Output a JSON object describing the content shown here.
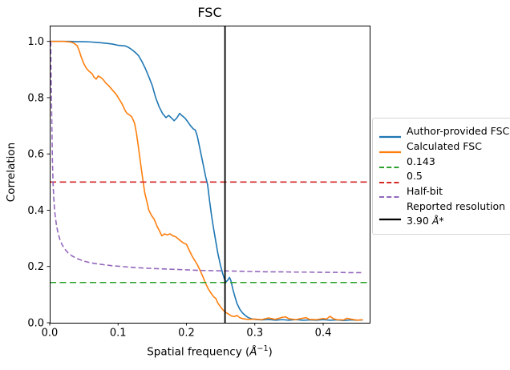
{
  "chart_data": {
    "type": "line",
    "title": "FSC",
    "ylabel": "Correlation",
    "xlabel": {
      "prefix": "Spatial frequency (",
      "unit": "Å",
      "exponent": "−1",
      "suffix": ")"
    },
    "xlim": [
      0,
      0.468
    ],
    "ylim": [
      0,
      1.056
    ],
    "xticks": [
      0,
      0.1,
      0.2,
      0.3,
      0.4
    ],
    "xtick_labels": [
      "0.0",
      "0.1",
      "0.2",
      "0.3",
      "0.4"
    ],
    "yticks": [
      0,
      0.2,
      0.4,
      0.6,
      0.8,
      1.0
    ],
    "ytick_labels": [
      "0.0",
      "0.2",
      "0.4",
      "0.6",
      "0.8",
      "1.0"
    ],
    "grid": false,
    "legend_position": "outside-right",
    "series": [
      {
        "name": "Author-provided FSC",
        "color": "#1f77b4",
        "style": "solid",
        "kind": "curve",
        "points": [
          [
            0,
            1.0
          ],
          [
            0.01,
            1.0
          ],
          [
            0.02,
            1.0
          ],
          [
            0.03,
            1.0
          ],
          [
            0.04,
            0.999
          ],
          [
            0.05,
            0.999
          ],
          [
            0.06,
            0.998
          ],
          [
            0.07,
            0.996
          ],
          [
            0.08,
            0.994
          ],
          [
            0.09,
            0.991
          ],
          [
            0.095,
            0.989
          ],
          [
            0.1,
            0.986
          ],
          [
            0.105,
            0.985
          ],
          [
            0.11,
            0.984
          ],
          [
            0.115,
            0.979
          ],
          [
            0.12,
            0.971
          ],
          [
            0.125,
            0.961
          ],
          [
            0.13,
            0.949
          ],
          [
            0.135,
            0.928
          ],
          [
            0.14,
            0.903
          ],
          [
            0.145,
            0.874
          ],
          [
            0.15,
            0.843
          ],
          [
            0.155,
            0.8
          ],
          [
            0.16,
            0.768
          ],
          [
            0.165,
            0.744
          ],
          [
            0.17,
            0.729
          ],
          [
            0.174,
            0.737
          ],
          [
            0.178,
            0.728
          ],
          [
            0.182,
            0.718
          ],
          [
            0.186,
            0.728
          ],
          [
            0.19,
            0.744
          ],
          [
            0.194,
            0.735
          ],
          [
            0.198,
            0.727
          ],
          [
            0.202,
            0.714
          ],
          [
            0.206,
            0.7
          ],
          [
            0.21,
            0.689
          ],
          [
            0.213,
            0.685
          ],
          [
            0.216,
            0.662
          ],
          [
            0.22,
            0.615
          ],
          [
            0.224,
            0.568
          ],
          [
            0.228,
            0.52
          ],
          [
            0.231,
            0.49
          ],
          [
            0.234,
            0.43
          ],
          [
            0.237,
            0.376
          ],
          [
            0.24,
            0.33
          ],
          [
            0.243,
            0.288
          ],
          [
            0.246,
            0.246
          ],
          [
            0.25,
            0.202
          ],
          [
            0.253,
            0.175
          ],
          [
            0.256,
            0.152
          ],
          [
            0.258,
            0.146
          ],
          [
            0.26,
            0.15
          ],
          [
            0.263,
            0.161
          ],
          [
            0.265,
            0.15
          ],
          [
            0.268,
            0.118
          ],
          [
            0.271,
            0.092
          ],
          [
            0.274,
            0.068
          ],
          [
            0.278,
            0.048
          ],
          [
            0.282,
            0.035
          ],
          [
            0.286,
            0.026
          ],
          [
            0.29,
            0.019
          ],
          [
            0.295,
            0.014
          ],
          [
            0.3,
            0.012
          ],
          [
            0.31,
            0.01
          ],
          [
            0.32,
            0.012
          ],
          [
            0.33,
            0.009
          ],
          [
            0.34,
            0.011
          ],
          [
            0.35,
            0.009
          ],
          [
            0.36,
            0.011
          ],
          [
            0.37,
            0.009
          ],
          [
            0.38,
            0.01
          ],
          [
            0.39,
            0.009
          ],
          [
            0.4,
            0.011
          ],
          [
            0.41,
            0.009
          ],
          [
            0.42,
            0.01
          ],
          [
            0.43,
            0.008
          ],
          [
            0.44,
            0.01
          ],
          [
            0.45,
            0.009
          ],
          [
            0.458,
            0.01
          ]
        ]
      },
      {
        "name": "Calculated FSC",
        "color": "#ff7f0e",
        "style": "solid",
        "kind": "curve",
        "points": [
          [
            0,
            1.0
          ],
          [
            0.01,
            1.0
          ],
          [
            0.02,
            1.0
          ],
          [
            0.025,
            0.999
          ],
          [
            0.03,
            0.998
          ],
          [
            0.035,
            0.994
          ],
          [
            0.04,
            0.985
          ],
          [
            0.043,
            0.968
          ],
          [
            0.046,
            0.945
          ],
          [
            0.05,
            0.92
          ],
          [
            0.054,
            0.903
          ],
          [
            0.058,
            0.893
          ],
          [
            0.062,
            0.885
          ],
          [
            0.065,
            0.872
          ],
          [
            0.068,
            0.866
          ],
          [
            0.071,
            0.877
          ],
          [
            0.074,
            0.873
          ],
          [
            0.078,
            0.865
          ],
          [
            0.082,
            0.852
          ],
          [
            0.086,
            0.843
          ],
          [
            0.09,
            0.832
          ],
          [
            0.094,
            0.821
          ],
          [
            0.098,
            0.809
          ],
          [
            0.102,
            0.793
          ],
          [
            0.106,
            0.777
          ],
          [
            0.11,
            0.756
          ],
          [
            0.113,
            0.744
          ],
          [
            0.116,
            0.74
          ],
          [
            0.12,
            0.732
          ],
          [
            0.124,
            0.71
          ],
          [
            0.127,
            0.672
          ],
          [
            0.13,
            0.62
          ],
          [
            0.133,
            0.565
          ],
          [
            0.136,
            0.512
          ],
          [
            0.139,
            0.462
          ],
          [
            0.142,
            0.432
          ],
          [
            0.145,
            0.4
          ],
          [
            0.149,
            0.381
          ],
          [
            0.153,
            0.367
          ],
          [
            0.157,
            0.343
          ],
          [
            0.161,
            0.324
          ],
          [
            0.164,
            0.309
          ],
          [
            0.168,
            0.316
          ],
          [
            0.172,
            0.312
          ],
          [
            0.176,
            0.316
          ],
          [
            0.18,
            0.309
          ],
          [
            0.184,
            0.306
          ],
          [
            0.188,
            0.298
          ],
          [
            0.192,
            0.29
          ],
          [
            0.196,
            0.283
          ],
          [
            0.2,
            0.279
          ],
          [
            0.204,
            0.258
          ],
          [
            0.208,
            0.238
          ],
          [
            0.212,
            0.222
          ],
          [
            0.216,
            0.206
          ],
          [
            0.22,
            0.186
          ],
          [
            0.224,
            0.164
          ],
          [
            0.228,
            0.14
          ],
          [
            0.232,
            0.12
          ],
          [
            0.236,
            0.105
          ],
          [
            0.24,
            0.092
          ],
          [
            0.243,
            0.086
          ],
          [
            0.246,
            0.07
          ],
          [
            0.25,
            0.056
          ],
          [
            0.254,
            0.044
          ],
          [
            0.258,
            0.036
          ],
          [
            0.262,
            0.03
          ],
          [
            0.266,
            0.024
          ],
          [
            0.27,
            0.022
          ],
          [
            0.274,
            0.026
          ],
          [
            0.278,
            0.018
          ],
          [
            0.283,
            0.014
          ],
          [
            0.29,
            0.012
          ],
          [
            0.3,
            0.013
          ],
          [
            0.31,
            0.011
          ],
          [
            0.32,
            0.017
          ],
          [
            0.33,
            0.012
          ],
          [
            0.34,
            0.019
          ],
          [
            0.345,
            0.021
          ],
          [
            0.35,
            0.014
          ],
          [
            0.36,
            0.011
          ],
          [
            0.37,
            0.016
          ],
          [
            0.375,
            0.018
          ],
          [
            0.38,
            0.012
          ],
          [
            0.39,
            0.011
          ],
          [
            0.4,
            0.015
          ],
          [
            0.405,
            0.013
          ],
          [
            0.41,
            0.023
          ],
          [
            0.415,
            0.014
          ],
          [
            0.42,
            0.011
          ],
          [
            0.43,
            0.01
          ],
          [
            0.435,
            0.016
          ],
          [
            0.44,
            0.013
          ],
          [
            0.45,
            0.009
          ],
          [
            0.458,
            0.011
          ]
        ]
      },
      {
        "name": "0.143",
        "color": "#2ca02c",
        "style": "dashed",
        "kind": "hline",
        "y_value": 0.143
      },
      {
        "name": "0.5",
        "color": "#d62728",
        "style": "dashed",
        "kind": "hline",
        "y_value": 0.5
      },
      {
        "name": "Half-bit",
        "color": "#9467bd",
        "style": "dashed",
        "kind": "curve",
        "points": [
          [
            0.0015,
            1.0
          ],
          [
            0.002,
            0.88
          ],
          [
            0.003,
            0.72
          ],
          [
            0.0035,
            0.64
          ],
          [
            0.004,
            0.57
          ],
          [
            0.005,
            0.49
          ],
          [
            0.006,
            0.44
          ],
          [
            0.007,
            0.405
          ],
          [
            0.008,
            0.38
          ],
          [
            0.01,
            0.345
          ],
          [
            0.012,
            0.32
          ],
          [
            0.015,
            0.295
          ],
          [
            0.018,
            0.278
          ],
          [
            0.022,
            0.262
          ],
          [
            0.027,
            0.248
          ],
          [
            0.033,
            0.237
          ],
          [
            0.04,
            0.228
          ],
          [
            0.05,
            0.219
          ],
          [
            0.06,
            0.213
          ],
          [
            0.07,
            0.209
          ],
          [
            0.08,
            0.206
          ],
          [
            0.09,
            0.203
          ],
          [
            0.1,
            0.201
          ],
          [
            0.12,
            0.197
          ],
          [
            0.14,
            0.194
          ],
          [
            0.16,
            0.192
          ],
          [
            0.18,
            0.19
          ],
          [
            0.2,
            0.188
          ],
          [
            0.22,
            0.186
          ],
          [
            0.24,
            0.185
          ],
          [
            0.26,
            0.184
          ],
          [
            0.28,
            0.183
          ],
          [
            0.3,
            0.182
          ],
          [
            0.32,
            0.181
          ],
          [
            0.34,
            0.181
          ],
          [
            0.36,
            0.18
          ],
          [
            0.38,
            0.18
          ],
          [
            0.4,
            0.179
          ],
          [
            0.42,
            0.179
          ],
          [
            0.44,
            0.178
          ],
          [
            0.458,
            0.178
          ]
        ]
      },
      {
        "name": "Reported resolution 3.90 Å*",
        "color": "#000000",
        "style": "solid",
        "kind": "vline",
        "x_value": 0.2564
      }
    ]
  },
  "legend": {
    "entries": [
      {
        "label": "Author-provided FSC",
        "color": "#1f77b4",
        "dash": "solid"
      },
      {
        "label": "Calculated FSC",
        "color": "#ff7f0e",
        "dash": "solid"
      },
      {
        "label": "0.143",
        "color": "#2ca02c",
        "dash": "dashed"
      },
      {
        "label": "0.5",
        "color": "#d62728",
        "dash": "dashed"
      },
      {
        "label": "Half-bit",
        "color": "#9467bd",
        "dash": "dashed"
      },
      {
        "label_line1": "Reported resolution",
        "label_line2_value": "3.90 ",
        "label_line2_unit": "Å",
        "label_line2_suffix": "*",
        "color": "#000000",
        "dash": "solid"
      }
    ]
  }
}
